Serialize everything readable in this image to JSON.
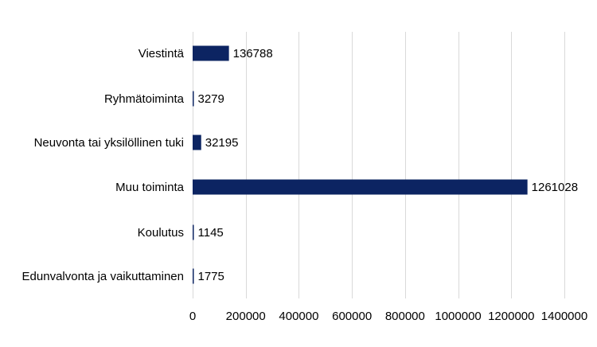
{
  "chart_data": {
    "type": "bar",
    "orientation": "horizontal",
    "categories": [
      "Viestintä",
      "Ryhmätoiminta",
      "Neuvonta tai yksilöllinen tuki",
      "Muu toiminta",
      "Koulutus",
      "Edunvalvonta ja vaikuttaminen"
    ],
    "values": [
      136788,
      3279,
      32195,
      1261028,
      1145,
      1775
    ],
    "data_labels": [
      "136788",
      "3279",
      "32195",
      "1261028",
      "1145",
      "1775"
    ],
    "xlim": [
      0,
      1400000
    ],
    "x_ticks": [
      0,
      200000,
      400000,
      600000,
      800000,
      1000000,
      1200000,
      1400000
    ],
    "x_tick_labels": [
      "0",
      "200000",
      "400000",
      "600000",
      "800000",
      "1000000",
      "1200000",
      "1400000"
    ],
    "grid": "vertical",
    "legend": "none",
    "colors": {
      "bar": "#0c2462",
      "grid": "#d9d9d9"
    }
  }
}
